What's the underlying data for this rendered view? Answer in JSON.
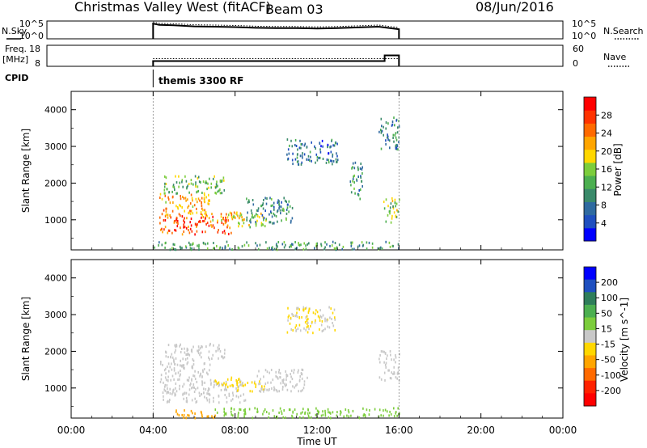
{
  "header": {
    "title": "Christmas Valley West (fitACF)",
    "beam": "Beam 03",
    "date": "08/Jun/2016"
  },
  "params": {
    "nsky_label": "N.Sky",
    "nsky_ticks": [
      "10^5",
      "10^0"
    ],
    "freq_label_1": "Freq.",
    "freq_label_2": "[MHz]",
    "freq_ticks": [
      "18",
      "8"
    ],
    "cpid_label": "CPID",
    "cpid_text": "themis 3300 RF",
    "nsearch_label": "N.Search",
    "nsearch_ticks": [
      "10^5",
      "10^0"
    ],
    "nave_label": "Nave",
    "nave_ticks": [
      "60",
      "0"
    ]
  },
  "colorbars": {
    "power": {
      "label": "Power [dB]",
      "ticks": [
        "28",
        "24",
        "20",
        "16",
        "12",
        "8",
        "4"
      ],
      "colors": [
        "#0000ff",
        "#1f4fbf",
        "#2f6aa0",
        "#3a8a6a",
        "#4caf50",
        "#7ccd3c",
        "#ffd700",
        "#ffa500",
        "#ff6a00",
        "#ff3300",
        "#ff0000"
      ]
    },
    "velocity": {
      "label": "Velocity [m s^-1]",
      "ticks": [
        "200",
        "100",
        "50",
        "15",
        "-15",
        "-50",
        "-100",
        "-200"
      ],
      "colors": [
        "#0000ff",
        "#1f4fbf",
        "#2e7d5a",
        "#4caf50",
        "#7ccd3c",
        "#c8c8c8",
        "#ffd700",
        "#ffa500",
        "#ff6a00",
        "#ff2200",
        "#ff0000"
      ]
    }
  },
  "axes": {
    "ylabel": "Slant Range [km]",
    "xlabel": "Time UT",
    "x_ticks": [
      "00:00",
      "04:00",
      "08:00",
      "12:00",
      "16:00",
      "20:00",
      "00:00"
    ],
    "y_ticks": [
      "1000",
      "2000",
      "3000",
      "4000"
    ]
  },
  "chart_data": [
    {
      "type": "heatmap",
      "panel": "power",
      "x_unit": "hours UT",
      "xlim": [
        0,
        24
      ],
      "ylim": [
        180,
        4500
      ],
      "ylabel": "Slant Range [km]",
      "colorbar_label": "Power [dB]",
      "data_window": [
        4.0,
        16.0
      ],
      "regions": [
        {
          "t": [
            4.3,
            7.8
          ],
          "r": [
            600,
            1100
          ],
          "v": 26
        },
        {
          "t": [
            4.3,
            6.8
          ],
          "r": [
            1100,
            1700
          ],
          "v": 22
        },
        {
          "t": [
            6.8,
            8.4
          ],
          "r": [
            900,
            1200
          ],
          "v": 20
        },
        {
          "t": [
            8.0,
            9.5
          ],
          "r": [
            800,
            1200
          ],
          "v": 18
        },
        {
          "t": [
            4.5,
            7.5
          ],
          "r": [
            1700,
            2200
          ],
          "v": 14
        },
        {
          "t": [
            8.5,
            10.8
          ],
          "r": [
            900,
            1600
          ],
          "v": 10
        },
        {
          "t": [
            10.5,
            13.0
          ],
          "r": [
            2500,
            3200
          ],
          "v": 8
        },
        {
          "t": [
            13.6,
            14.2
          ],
          "r": [
            1500,
            2600
          ],
          "v": 10
        },
        {
          "t": [
            15.0,
            16.0
          ],
          "r": [
            2900,
            3800
          ],
          "v": 9
        },
        {
          "t": [
            15.2,
            16.0
          ],
          "r": [
            900,
            1600
          ],
          "v": 16
        },
        {
          "t": [
            4.0,
            16.0
          ],
          "r": [
            180,
            400
          ],
          "v": 12
        }
      ]
    },
    {
      "type": "heatmap",
      "panel": "velocity",
      "x_unit": "hours UT",
      "xlim": [
        0,
        24
      ],
      "ylim": [
        180,
        4500
      ],
      "ylabel": "Slant Range [km]",
      "colorbar_label": "Velocity [m s^-1]",
      "data_window": [
        4.0,
        16.0
      ],
      "regions": [
        {
          "t": [
            4.3,
            8.5
          ],
          "r": [
            600,
            1200
          ],
          "v": 0
        },
        {
          "t": [
            4.3,
            6.8
          ],
          "r": [
            1200,
            1800
          ],
          "v": 0
        },
        {
          "t": [
            7.0,
            8.5
          ],
          "r": [
            1000,
            1300
          ],
          "v": -40
        },
        {
          "t": [
            8.0,
            9.5
          ],
          "r": [
            900,
            1200
          ],
          "v": -30
        },
        {
          "t": [
            4.5,
            7.5
          ],
          "r": [
            1800,
            2200
          ],
          "v": 0
        },
        {
          "t": [
            9.0,
            11.5
          ],
          "r": [
            900,
            1500
          ],
          "v": 0
        },
        {
          "t": [
            10.5,
            13.0
          ],
          "r": [
            2500,
            3200
          ],
          "v": -20
        },
        {
          "t": [
            15.0,
            16.0
          ],
          "r": [
            1200,
            2000
          ],
          "v": 0
        },
        {
          "t": [
            5.0,
            7.0
          ],
          "r": [
            180,
            400
          ],
          "v": -80
        },
        {
          "t": [
            7.0,
            16.0
          ],
          "r": [
            180,
            450
          ],
          "v": 40
        }
      ]
    },
    {
      "type": "line",
      "panel": "nsky",
      "x_unit": "hours UT",
      "ylim": [
        0,
        5
      ],
      "y_scale": "log10",
      "x": [
        4.0,
        4.3,
        5,
        6,
        7,
        8,
        9,
        10,
        11,
        12,
        13,
        14,
        15,
        16
      ],
      "y": [
        4.3,
        3.9,
        3.8,
        3.5,
        3.4,
        3.3,
        3.1,
        3.0,
        3.0,
        2.9,
        3.0,
        3.2,
        3.4,
        2.7
      ]
    },
    {
      "type": "line",
      "panel": "freq",
      "x_unit": "hours UT",
      "ylim": [
        8,
        18
      ],
      "x": [
        4.0,
        15.3,
        15.3,
        16.0
      ],
      "y": [
        10.5,
        10.5,
        13.2,
        13.2
      ]
    }
  ]
}
